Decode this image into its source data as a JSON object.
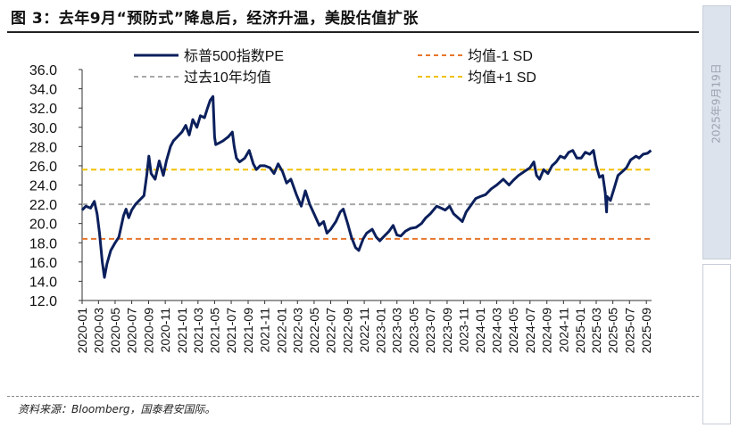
{
  "title": "图 3：去年9月“预防式”降息后，经济升温，美股估值扩张",
  "source": "资料来源：Bloomberg，国泰君安国际。",
  "side_date": "2025年9月19日",
  "colors": {
    "pe_line": "#0b1f5c",
    "mean_minus": "#e8762b",
    "mean": "#a9a9a9",
    "mean_plus": "#f2c000"
  },
  "chart_data": {
    "type": "line",
    "title": "",
    "xlabel": "",
    "ylabel": "",
    "ylim": [
      12.0,
      36.0
    ],
    "y_ticks": [
      "12.0",
      "14.0",
      "16.0",
      "18.0",
      "20.0",
      "22.0",
      "24.0",
      "26.0",
      "28.0",
      "30.0",
      "32.0",
      "34.0",
      "36.0"
    ],
    "x_ticks": [
      "2020-01",
      "2020-03",
      "2020-05",
      "2020-07",
      "2020-09",
      "2020-11",
      "2021-01",
      "2021-03",
      "2021-05",
      "2021-07",
      "2021-09",
      "2021-11",
      "2022-01",
      "2022-03",
      "2022-05",
      "2022-07",
      "2022-09",
      "2022-11",
      "2023-01",
      "2023-03",
      "2023-05",
      "2023-07",
      "2023-09",
      "2023-11",
      "2024-01",
      "2024-03",
      "2024-05",
      "2024-07",
      "2024-09",
      "2024-11",
      "2025-01",
      "2025-03",
      "2025-05",
      "2025-07",
      "2025-09"
    ],
    "grid": false,
    "legend_position": "top",
    "series": [
      {
        "name": "标普500指数PE",
        "style": "solid",
        "points": [
          [
            "2020-01-01",
            21.4
          ],
          [
            "2020-01-15",
            21.8
          ],
          [
            "2020-02-01",
            21.6
          ],
          [
            "2020-02-15",
            22.3
          ],
          [
            "2020-02-25",
            21.0
          ],
          [
            "2020-03-05",
            19.0
          ],
          [
            "2020-03-15",
            16.0
          ],
          [
            "2020-03-23",
            14.4
          ],
          [
            "2020-04-01",
            15.8
          ],
          [
            "2020-04-15",
            17.2
          ],
          [
            "2020-05-01",
            18.0
          ],
          [
            "2020-05-15",
            18.6
          ],
          [
            "2020-06-01",
            20.8
          ],
          [
            "2020-06-10",
            21.5
          ],
          [
            "2020-06-20",
            20.6
          ],
          [
            "2020-07-01",
            21.4
          ],
          [
            "2020-07-15",
            22.0
          ],
          [
            "2020-08-01",
            22.5
          ],
          [
            "2020-08-15",
            22.9
          ],
          [
            "2020-08-25",
            25.0
          ],
          [
            "2020-09-02",
            27.0
          ],
          [
            "2020-09-10",
            25.2
          ],
          [
            "2020-09-25",
            24.6
          ],
          [
            "2020-10-10",
            26.5
          ],
          [
            "2020-10-25",
            25.0
          ],
          [
            "2020-11-05",
            26.5
          ],
          [
            "2020-11-20",
            28.0
          ],
          [
            "2020-12-01",
            28.6
          ],
          [
            "2020-12-15",
            29.0
          ],
          [
            "2021-01-01",
            29.5
          ],
          [
            "2021-01-15",
            30.2
          ],
          [
            "2021-01-28",
            29.2
          ],
          [
            "2021-02-10",
            30.8
          ],
          [
            "2021-02-25",
            30.0
          ],
          [
            "2021-03-10",
            31.2
          ],
          [
            "2021-03-25",
            31.0
          ],
          [
            "2021-04-05",
            32.0
          ],
          [
            "2021-04-15",
            32.8
          ],
          [
            "2021-04-25",
            33.2
          ],
          [
            "2021-05-01",
            29.0
          ],
          [
            "2021-05-05",
            28.2
          ],
          [
            "2021-05-20",
            28.4
          ],
          [
            "2021-06-01",
            28.6
          ],
          [
            "2021-06-20",
            29.0
          ],
          [
            "2021-07-05",
            29.5
          ],
          [
            "2021-07-12",
            28.0
          ],
          [
            "2021-07-20",
            26.8
          ],
          [
            "2021-08-01",
            26.4
          ],
          [
            "2021-08-20",
            26.8
          ],
          [
            "2021-09-05",
            27.6
          ],
          [
            "2021-09-20",
            26.2
          ],
          [
            "2021-10-01",
            25.6
          ],
          [
            "2021-10-15",
            26.0
          ],
          [
            "2021-11-01",
            26.0
          ],
          [
            "2021-11-20",
            25.8
          ],
          [
            "2021-12-05",
            25.2
          ],
          [
            "2021-12-20",
            26.2
          ],
          [
            "2022-01-05",
            25.4
          ],
          [
            "2022-01-20",
            24.2
          ],
          [
            "2022-02-05",
            24.6
          ],
          [
            "2022-02-25",
            23.0
          ],
          [
            "2022-03-15",
            21.8
          ],
          [
            "2022-03-30",
            23.4
          ],
          [
            "2022-04-15",
            22.0
          ],
          [
            "2022-05-01",
            21.0
          ],
          [
            "2022-05-20",
            19.8
          ],
          [
            "2022-06-05",
            20.2
          ],
          [
            "2022-06-17",
            19.0
          ],
          [
            "2022-07-01",
            19.4
          ],
          [
            "2022-07-20",
            20.2
          ],
          [
            "2022-08-05",
            21.2
          ],
          [
            "2022-08-16",
            21.5
          ],
          [
            "2022-09-01",
            20.0
          ],
          [
            "2022-09-15",
            18.6
          ],
          [
            "2022-09-30",
            17.5
          ],
          [
            "2022-10-12",
            17.2
          ],
          [
            "2022-10-28",
            18.4
          ],
          [
            "2022-11-10",
            19.0
          ],
          [
            "2022-11-30",
            19.4
          ],
          [
            "2022-12-15",
            18.6
          ],
          [
            "2022-12-28",
            18.2
          ],
          [
            "2023-01-10",
            18.6
          ],
          [
            "2023-01-31",
            19.2
          ],
          [
            "2023-02-15",
            19.8
          ],
          [
            "2023-03-01",
            18.8
          ],
          [
            "2023-03-15",
            18.7
          ],
          [
            "2023-04-01",
            19.2
          ],
          [
            "2023-04-20",
            19.5
          ],
          [
            "2023-05-10",
            19.6
          ],
          [
            "2023-05-30",
            20.0
          ],
          [
            "2023-06-15",
            20.6
          ],
          [
            "2023-07-01",
            21.0
          ],
          [
            "2023-07-25",
            21.8
          ],
          [
            "2023-08-10",
            21.6
          ],
          [
            "2023-08-25",
            21.4
          ],
          [
            "2023-09-10",
            21.8
          ],
          [
            "2023-09-25",
            21.0
          ],
          [
            "2023-10-15",
            20.5
          ],
          [
            "2023-10-27",
            20.2
          ],
          [
            "2023-11-10",
            21.2
          ],
          [
            "2023-11-30",
            22.0
          ],
          [
            "2023-12-15",
            22.6
          ],
          [
            "2024-01-01",
            22.8
          ],
          [
            "2024-01-20",
            23.0
          ],
          [
            "2024-02-10",
            23.6
          ],
          [
            "2024-03-01",
            24.0
          ],
          [
            "2024-03-25",
            24.6
          ],
          [
            "2024-04-15",
            24.0
          ],
          [
            "2024-05-01",
            24.5
          ],
          [
            "2024-05-20",
            25.0
          ],
          [
            "2024-06-10",
            25.4
          ],
          [
            "2024-07-01",
            25.8
          ],
          [
            "2024-07-15",
            26.4
          ],
          [
            "2024-07-25",
            25.0
          ],
          [
            "2024-08-05",
            24.6
          ],
          [
            "2024-08-20",
            25.6
          ],
          [
            "2024-09-05",
            25.2
          ],
          [
            "2024-09-20",
            26.0
          ],
          [
            "2024-10-05",
            26.4
          ],
          [
            "2024-10-20",
            27.0
          ],
          [
            "2024-11-05",
            26.8
          ],
          [
            "2024-11-20",
            27.4
          ],
          [
            "2024-12-05",
            27.6
          ],
          [
            "2024-12-20",
            26.8
          ],
          [
            "2025-01-05",
            26.8
          ],
          [
            "2025-01-20",
            27.4
          ],
          [
            "2025-02-05",
            27.2
          ],
          [
            "2025-02-19",
            27.6
          ],
          [
            "2025-03-01",
            26.0
          ],
          [
            "2025-03-13",
            24.8
          ],
          [
            "2025-03-25",
            25.0
          ],
          [
            "2025-04-03",
            23.2
          ],
          [
            "2025-04-08",
            21.2
          ],
          [
            "2025-04-10",
            22.8
          ],
          [
            "2025-04-22",
            22.4
          ],
          [
            "2025-05-05",
            23.6
          ],
          [
            "2025-05-20",
            25.0
          ],
          [
            "2025-06-05",
            25.4
          ],
          [
            "2025-06-20",
            25.8
          ],
          [
            "2025-07-05",
            26.6
          ],
          [
            "2025-07-25",
            27.0
          ],
          [
            "2025-08-05",
            26.8
          ],
          [
            "2025-08-20",
            27.2
          ],
          [
            "2025-09-05",
            27.3
          ],
          [
            "2025-09-18",
            27.6
          ]
        ]
      },
      {
        "name": "均值-1 SD",
        "style": "dashed",
        "value": 18.4
      },
      {
        "name": "过去10年均值",
        "style": "dashed",
        "value": 22.0
      },
      {
        "name": "均值+1 SD",
        "style": "dashed",
        "value": 25.6
      }
    ]
  }
}
